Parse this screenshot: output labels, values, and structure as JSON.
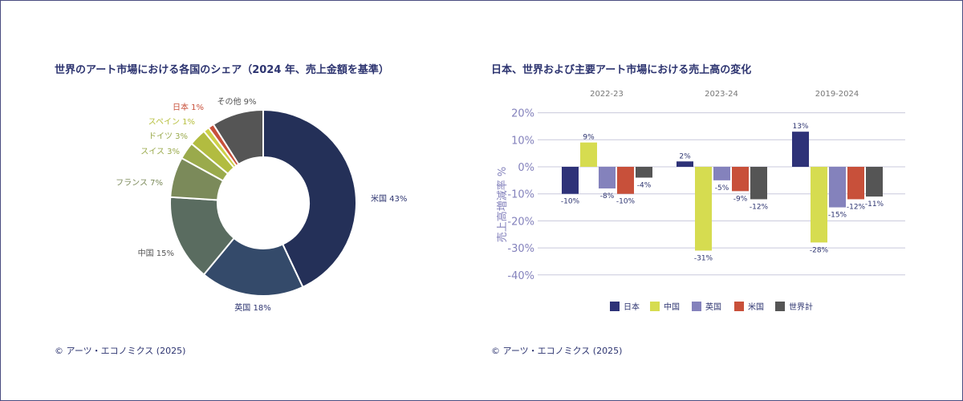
{
  "left": {
    "title": "世界のアート市場における各国のシェア（2024 年、売上金額を基準）",
    "source": "© アーツ・エコノミクス (2025)"
  },
  "right": {
    "title": "日本、世界および主要アート市場における売上高の変化",
    "source": "© アーツ・エコノミクス (2025)"
  },
  "chart_data": [
    {
      "type": "pie",
      "variant": "donut",
      "title": "世界のアート市場における各国のシェア（2024 年、売上金額を基準）",
      "slices": [
        {
          "label": "米国",
          "value": 43,
          "text": "米国 43%",
          "color": "#243058"
        },
        {
          "label": "英国",
          "value": 18,
          "text": "英国 18%",
          "color": "#344a6a"
        },
        {
          "label": "中国",
          "value": 15,
          "text": "中国 15%",
          "color": "#5a6c60"
        },
        {
          "label": "フランス",
          "value": 7,
          "text": "フランス 7%",
          "color": "#7b8a5a"
        },
        {
          "label": "スイス",
          "value": 3,
          "text": "スイス 3%",
          "color": "#9aaa4c"
        },
        {
          "label": "ドイツ",
          "value": 3,
          "text": "ドイツ 3%",
          "color": "#b2bc40"
        },
        {
          "label": "スペイン",
          "value": 1,
          "text": "スペイン 1%",
          "color": "#cdd048"
        },
        {
          "label": "日本",
          "value": 1,
          "text": "日本 1%",
          "color": "#c8503a"
        },
        {
          "label": "その他",
          "value": 9,
          "text": "その他 9%",
          "color": "#555555"
        }
      ]
    },
    {
      "type": "bar",
      "title": "日本、世界および主要アート市場における売上高の変化",
      "categories": [
        "2022-23",
        "2023-24",
        "2019-2024"
      ],
      "ylabel": "売上高増減率 %",
      "ylim": [
        -40,
        20
      ],
      "yticks": [
        "20%",
        "10%",
        "0%",
        "-10%",
        "-20%",
        "-30%",
        "-40%"
      ],
      "ytick_values": [
        20,
        10,
        0,
        -10,
        -20,
        -30,
        -40
      ],
      "grid": true,
      "legend": "bottom",
      "series": [
        {
          "name": "日本",
          "color": "#2e3278",
          "values": [
            -10,
            2,
            13
          ]
        },
        {
          "name": "中国",
          "color": "#d6dc50",
          "values": [
            9,
            -31,
            -28
          ]
        },
        {
          "name": "英国",
          "color": "#8482bc",
          "values": [
            -8,
            -5,
            -15
          ]
        },
        {
          "name": "米国",
          "color": "#c8503a",
          "values": [
            -10,
            -9,
            -12
          ]
        },
        {
          "name": "世界計",
          "color": "#555555",
          "values": [
            -4,
            -12,
            -11
          ]
        }
      ]
    }
  ]
}
